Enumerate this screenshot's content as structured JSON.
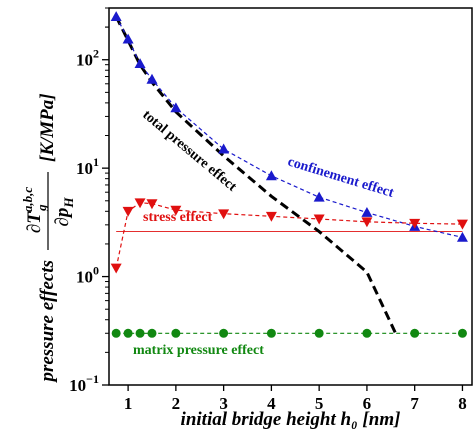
{
  "chart_data": {
    "type": "line",
    "y_scale": "log",
    "xlim": [
      0.6,
      8.2
    ],
    "ylim": [
      0.1,
      300
    ],
    "x_ticks": [
      1,
      2,
      3,
      4,
      5,
      6,
      7,
      8
    ],
    "y_tick_labels": [
      "10^{-1}",
      "10^{0}",
      "10^{1}",
      "10^{2}"
    ],
    "xlabel": "initial bridge height h₀ [nm]",
    "ylabel": "pressure effects ∂T_g^{a,b,c}/∂p_H [K/MPa]",
    "series": [
      {
        "name": "total pressure effect",
        "color": "#000000",
        "line_style": "dashed",
        "marker": "none",
        "x": [
          0.75,
          1.0,
          1.25,
          1.5,
          2.0,
          3.0,
          4.0,
          5.0,
          6.0,
          6.6
        ],
        "y": [
          250,
          150,
          90,
          62,
          33,
          13,
          5.5,
          2.6,
          1.1,
          0.3
        ]
      },
      {
        "name": "confinement effect",
        "color": "#1a1acc",
        "line_style": "dashed",
        "marker": "triangle-up",
        "x": [
          0.75,
          1.0,
          1.25,
          1.5,
          2.0,
          3.0,
          4.0,
          5.0,
          6.0,
          7.0,
          8.0
        ],
        "y": [
          250,
          155,
          92,
          66,
          36,
          15,
          8.5,
          5.4,
          3.9,
          2.9,
          2.3
        ]
      },
      {
        "name": "stress effect",
        "color": "#e01010",
        "line_style": "dashed",
        "marker": "triangle-down",
        "x": [
          0.75,
          1.0,
          1.25,
          1.5,
          2.0,
          3.0,
          4.0,
          5.0,
          6.0,
          7.0,
          8.0
        ],
        "y": [
          1.2,
          4.0,
          4.8,
          4.7,
          4.1,
          3.8,
          3.6,
          3.4,
          3.2,
          3.1,
          3.05
        ]
      },
      {
        "name": "matrix pressure effect",
        "color": "#118811",
        "line_style": "dashed",
        "marker": "circle",
        "x": [
          0.75,
          1.0,
          1.25,
          1.5,
          2.0,
          3.0,
          4.0,
          5.0,
          6.0,
          7.0,
          8.0
        ],
        "y": [
          0.3,
          0.3,
          0.3,
          0.3,
          0.3,
          0.3,
          0.3,
          0.3,
          0.3,
          0.3,
          0.3
        ]
      }
    ],
    "reference_line": {
      "color": "#e01010",
      "style": "solid-thin",
      "y": 2.6
    },
    "annotations": [
      {
        "text": "total pressure effect",
        "color": "#000000"
      },
      {
        "text": "confinement effect",
        "color": "#1a1acc"
      },
      {
        "text": "stress effect",
        "color": "#e01010"
      },
      {
        "text": "matrix pressure effect",
        "color": "#118811"
      }
    ]
  }
}
